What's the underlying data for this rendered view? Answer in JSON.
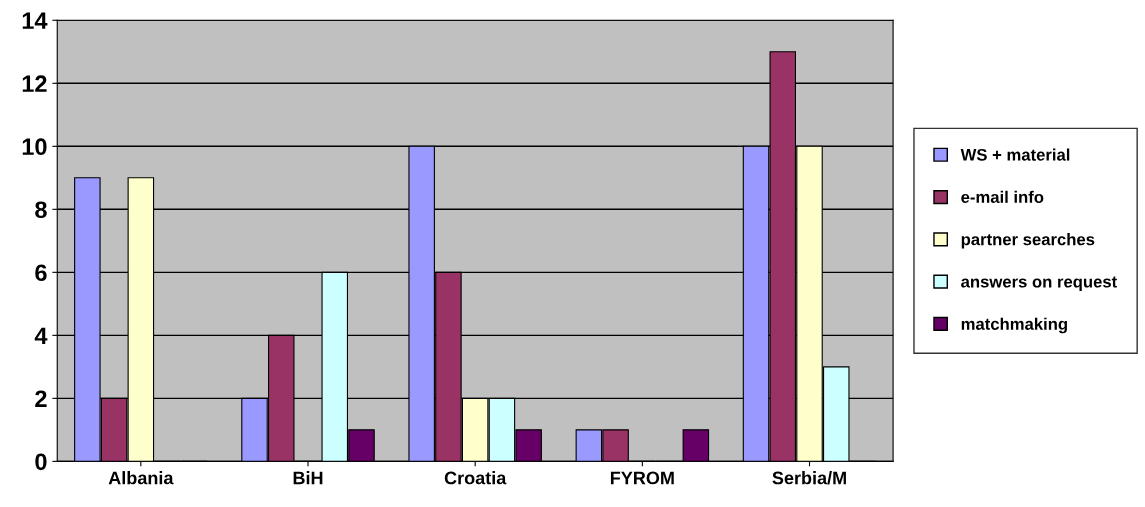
{
  "chart_data": {
    "type": "bar",
    "categories": [
      "Albania",
      "BiH",
      "Croatia",
      "FYROM",
      "Serbia/M"
    ],
    "series": [
      {
        "name": "WS + material",
        "color": "#9999ff",
        "values": [
          9,
          2,
          10,
          1,
          10
        ]
      },
      {
        "name": "e-mail info",
        "color": "#993366",
        "values": [
          2,
          4,
          6,
          1,
          13
        ]
      },
      {
        "name": "partner searches",
        "color": "#ffffcc",
        "values": [
          9,
          0,
          2,
          0,
          10
        ]
      },
      {
        "name": "answers on request",
        "color": "#ccffff",
        "values": [
          0,
          6,
          2,
          0,
          3
        ]
      },
      {
        "name": "matchmaking",
        "color": "#660066",
        "values": [
          0,
          1,
          1,
          1,
          0
        ]
      }
    ],
    "ylim": [
      0,
      14
    ],
    "yticks": [
      0,
      2,
      4,
      6,
      8,
      10,
      12,
      14
    ],
    "grid": "y",
    "legend": "right"
  }
}
